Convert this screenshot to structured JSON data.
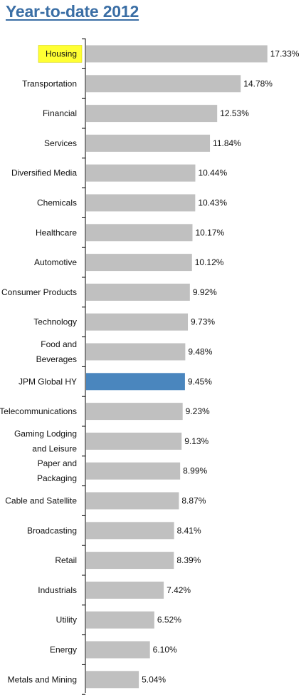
{
  "chart_data": {
    "type": "bar",
    "orientation": "horizontal",
    "title": "Year-to-date 2012",
    "xlabel": "",
    "ylabel": "",
    "grid": false,
    "categories": [
      "Housing",
      "Transportation",
      "Financial",
      "Services",
      "Diversified Media",
      "Chemicals",
      "Healthcare",
      "Automotive",
      "Consumer Products",
      "Technology",
      "Food and Beverages",
      "JPM Global HY",
      "Telecommunications",
      "Gaming Lodging and Leisure",
      "Paper and Packaging",
      "Cable and Satellite",
      "Broadcasting",
      "Retail",
      "Industrials",
      "Utility",
      "Energy",
      "Metals and Mining"
    ],
    "values": [
      17.33,
      14.78,
      12.53,
      11.84,
      10.44,
      10.43,
      10.17,
      10.12,
      9.92,
      9.73,
      9.48,
      9.45,
      9.23,
      9.13,
      8.99,
      8.87,
      8.41,
      8.39,
      7.42,
      6.52,
      6.1,
      5.04
    ],
    "value_labels": [
      "17.33%",
      "14.78%",
      "12.53%",
      "11.84%",
      "10.44%",
      "10.43%",
      "10.17%",
      "10.12%",
      "9.92%",
      "9.73%",
      "9.48%",
      "9.45%",
      "9.23%",
      "9.13%",
      "8.99%",
      "8.87%",
      "8.41%",
      "8.39%",
      "7.42%",
      "6.52%",
      "6.10%",
      "5.04%"
    ],
    "highlighted_label": "Housing",
    "highlighted_bar": "JPM Global HY",
    "colors": {
      "bar": "#c0c0c0",
      "highlight_bar": "#4a86be",
      "label_highlight": "#ffff33",
      "label_highlight_border": "#c8c800",
      "axis": "#000000",
      "title": "#3a6ea5"
    }
  }
}
